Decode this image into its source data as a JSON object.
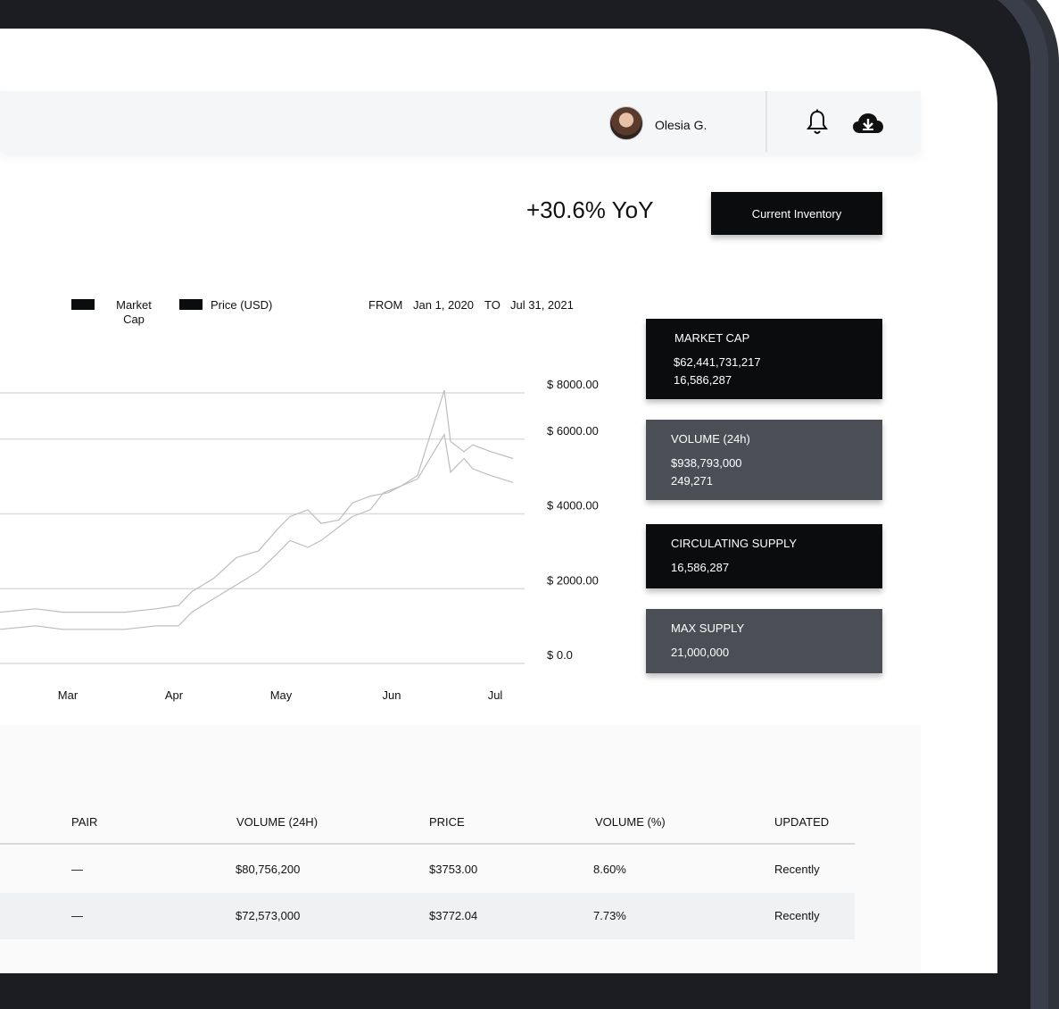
{
  "user": {
    "name": "Olesia G."
  },
  "icons": {
    "bell": "bell-icon",
    "download": "cloud-download-icon",
    "avatar": "avatar"
  },
  "kpi": {
    "yoy": "+30.6% YoY",
    "inventory_button": "Current Inventory"
  },
  "range": {
    "from_label": "FROM",
    "from": "Jan 1, 2020",
    "to_label": "TO",
    "to": "Jul 31, 2021"
  },
  "chart_data": {
    "type": "line",
    "legend": [
      "Market\nCap",
      "Price (USD)"
    ],
    "x": [
      "Mar",
      "Apr",
      "May",
      "Jun",
      "Jul"
    ],
    "ylabels": [
      "$ 8000.00",
      "$ 6000.00",
      "$ 4000.00",
      "$ 2000.00",
      "$ 0.0"
    ],
    "ylim": [
      0,
      8000
    ],
    "series": [
      {
        "name": "Market Cap",
        "points": [
          [
            0,
            1500
          ],
          [
            40,
            1600
          ],
          [
            70,
            1500
          ],
          [
            100,
            1500
          ],
          [
            140,
            1500
          ],
          [
            175,
            1600
          ],
          [
            200,
            1700
          ],
          [
            215,
            2100
          ],
          [
            240,
            2500
          ],
          [
            265,
            3100
          ],
          [
            290,
            3300
          ],
          [
            310,
            3900
          ],
          [
            325,
            4300
          ],
          [
            345,
            4500
          ],
          [
            360,
            4100
          ],
          [
            380,
            4200
          ],
          [
            395,
            4700
          ],
          [
            415,
            4900
          ],
          [
            435,
            5000
          ],
          [
            450,
            5200
          ],
          [
            468,
            5400
          ],
          [
            498,
            6700
          ],
          [
            505,
            5600
          ],
          [
            520,
            6000
          ],
          [
            530,
            5700
          ],
          [
            550,
            5500
          ],
          [
            575,
            5300
          ]
        ]
      },
      {
        "name": "Price (USD)",
        "points": [
          [
            0,
            1000
          ],
          [
            40,
            1100
          ],
          [
            70,
            1000
          ],
          [
            100,
            1000
          ],
          [
            140,
            1000
          ],
          [
            175,
            1100
          ],
          [
            200,
            1100
          ],
          [
            215,
            1500
          ],
          [
            240,
            1900
          ],
          [
            265,
            2300
          ],
          [
            290,
            2700
          ],
          [
            310,
            3200
          ],
          [
            325,
            3600
          ],
          [
            345,
            3400
          ],
          [
            360,
            3600
          ],
          [
            380,
            4000
          ],
          [
            395,
            4300
          ],
          [
            415,
            4500
          ],
          [
            430,
            5000
          ],
          [
            450,
            5200
          ],
          [
            468,
            5500
          ],
          [
            498,
            8000
          ],
          [
            505,
            6500
          ],
          [
            520,
            6200
          ],
          [
            530,
            6400
          ],
          [
            550,
            6200
          ],
          [
            575,
            6000
          ]
        ]
      }
    ]
  },
  "cards": [
    {
      "title": "MARKET CAP",
      "value1": "$62,441,731,217",
      "value2": "16,586,287",
      "style": "dark"
    },
    {
      "title": "VOLUME (24h)",
      "value1": "$938,793,000",
      "value2": "249,271",
      "style": "gray"
    },
    {
      "title": "CIRCULATING SUPPLY",
      "value1": "16,586,287",
      "style": "dark"
    },
    {
      "title": "MAX SUPPLY",
      "value1": "21,000,000",
      "style": "gray"
    }
  ],
  "table": {
    "headers": [
      "PAIR",
      "VOLUME (24H)",
      "PRICE",
      "VOLUME (%)",
      "UPDATED"
    ],
    "rows": [
      [
        "—",
        "$80,756,200",
        "$3753.00",
        "8.60%",
        "Recently"
      ],
      [
        "—",
        "$72,573,000",
        "$3772.04",
        "7.73%",
        "Recently"
      ]
    ]
  },
  "colors": {
    "dark": "#0b0c0e",
    "gray": "#4b4e55",
    "header_bg": "#f5f6f7"
  }
}
